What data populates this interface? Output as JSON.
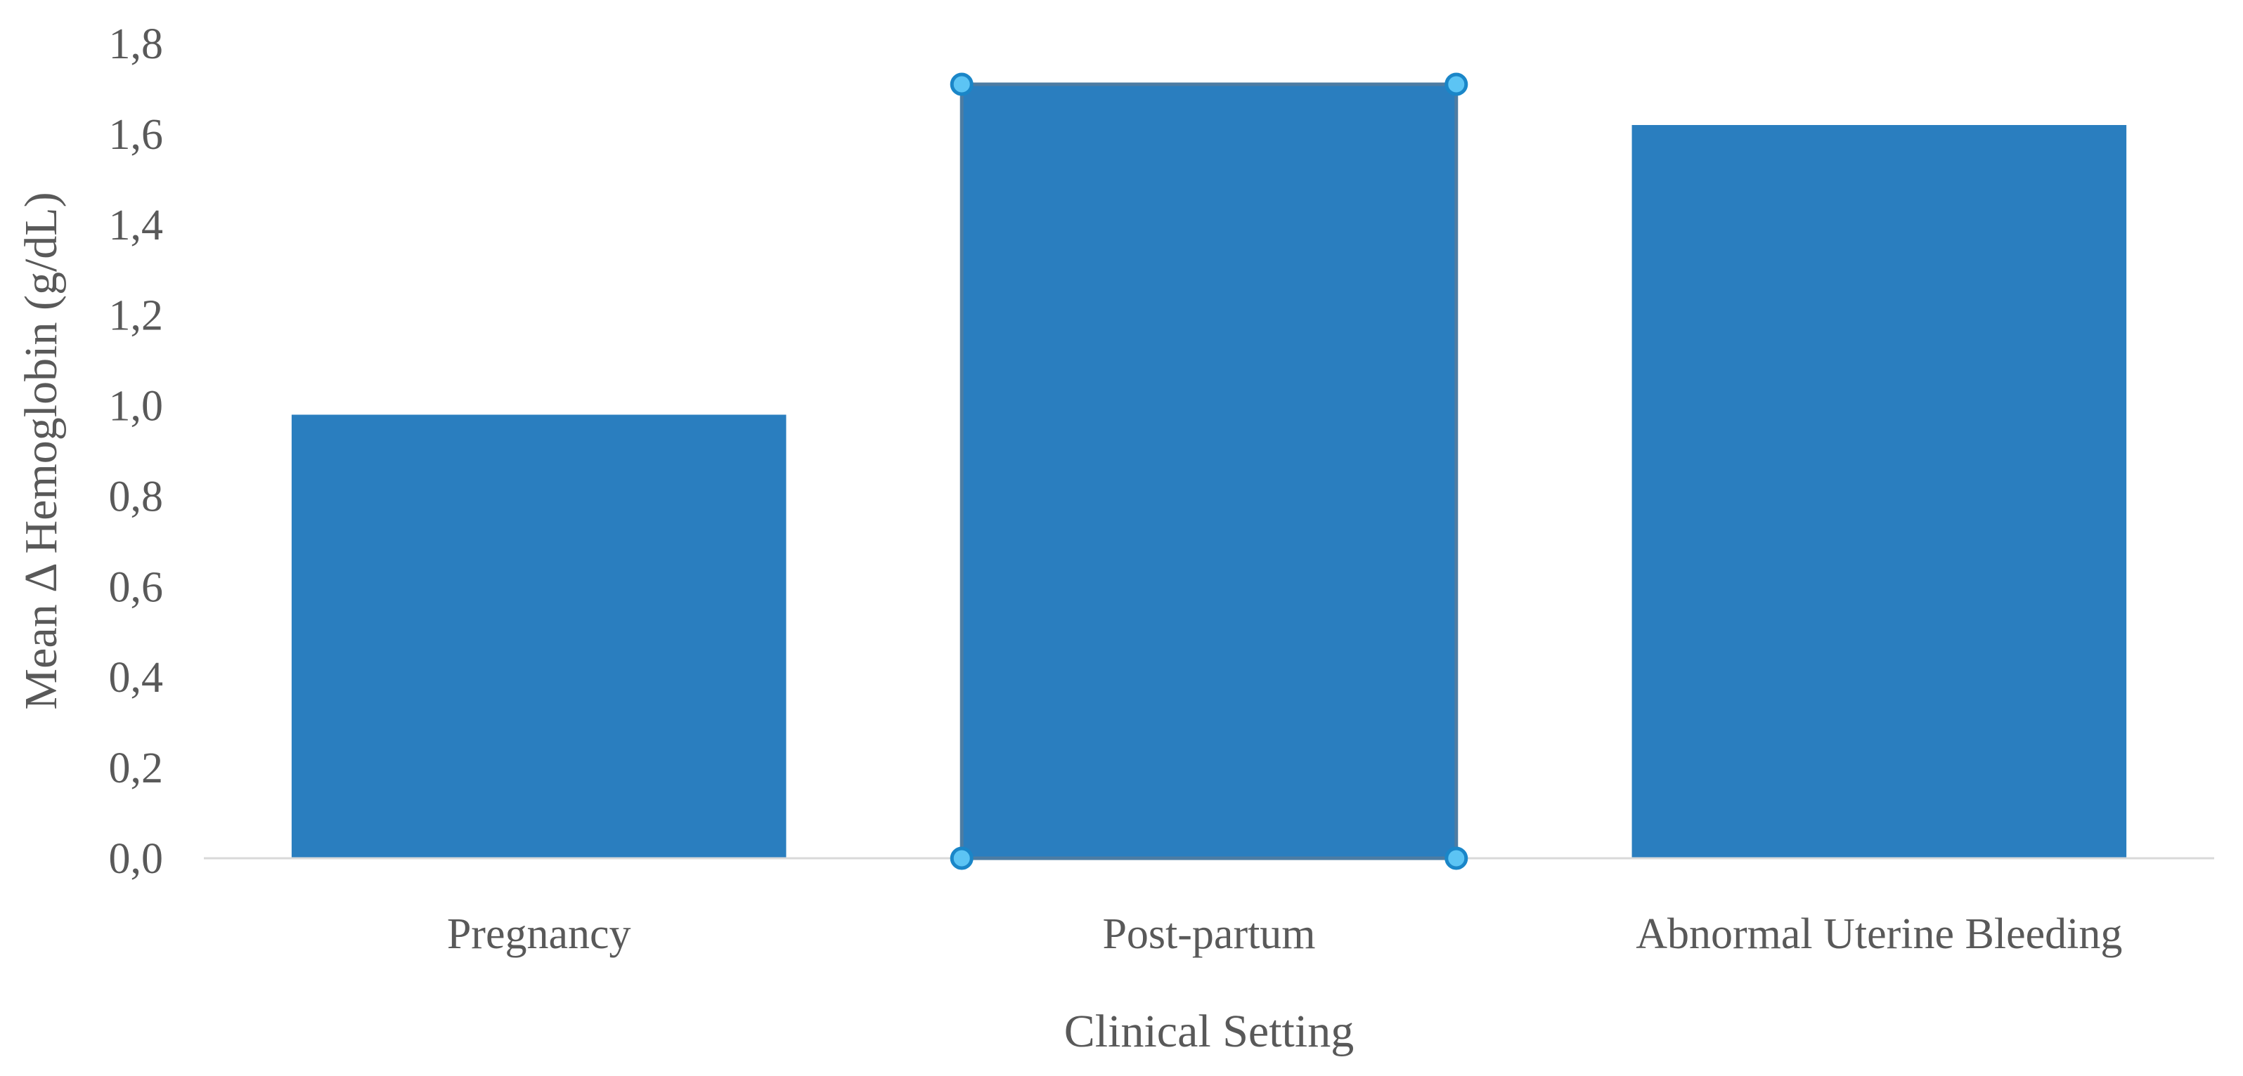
{
  "chart_data": {
    "type": "bar",
    "categories": [
      "Pregnancy",
      "Post-partum",
      "Abnormal Uterine Bleeding"
    ],
    "values": [
      0.98,
      1.71,
      1.62
    ],
    "xlabel": "Clinical Setting",
    "ylabel": "Mean Δ Hemoglobin (g/dL)",
    "ylim": [
      0,
      1.8
    ],
    "yticks": [
      "0,0",
      "0,2",
      "0,4",
      "0,6",
      "0,8",
      "1,0",
      "1,2",
      "1,4",
      "1,6",
      "1,8"
    ],
    "grid": false,
    "legend": "none",
    "selected_category": "Post-partum",
    "colors": {
      "bar": "#2a7ebf",
      "selection_border": "#4d7ca3",
      "selection_handle_fill": "#5cc4f4",
      "selection_handle_stroke": "#1a86c8",
      "baseline": "#d9d9d9",
      "text": "#595959"
    }
  }
}
